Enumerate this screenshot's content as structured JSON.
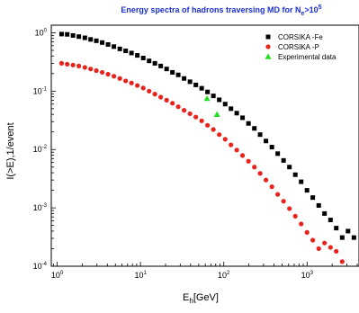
{
  "chart_data": {
    "type": "scatter",
    "title_main": "Energy spectra of hadrons traversing MD for N",
    "title_sub": "e",
    "title_op": ">10",
    "title_sup": "5",
    "xlabel_main": "E",
    "xlabel_sub": "h",
    "xlabel_unit": "[GeV]",
    "ylabel": "I(>E),1/event",
    "xscale": "log",
    "yscale": "log",
    "xlim": [
      0.85,
      4200
    ],
    "ylim": [
      0.0001,
      1.35
    ],
    "xticks": [
      {
        "value": 1,
        "base": "10",
        "exp": "0"
      },
      {
        "value": 10,
        "base": "10",
        "exp": "1"
      },
      {
        "value": 100,
        "base": "10",
        "exp": "2"
      },
      {
        "value": 1000,
        "base": "10",
        "exp": "3"
      }
    ],
    "yticks": [
      {
        "value": 1,
        "base": "10",
        "exp": "0"
      },
      {
        "value": 0.1,
        "base": "10",
        "exp": "-1"
      },
      {
        "value": 0.01,
        "base": "10",
        "exp": "-2"
      },
      {
        "value": 0.001,
        "base": "10",
        "exp": "-3"
      },
      {
        "value": 0.0001,
        "base": "10",
        "exp": "-4"
      }
    ],
    "legend_position": "top-right",
    "series": [
      {
        "name": "CORSIKA -Fe",
        "marker": "square",
        "color": "#000000",
        "x": [
          1.13,
          1.32,
          1.55,
          1.82,
          2.15,
          2.52,
          2.95,
          3.47,
          4.08,
          4.8,
          5.65,
          6.64,
          7.8,
          9.17,
          10.8,
          12.7,
          14.9,
          17.5,
          20.6,
          24.2,
          28.4,
          33.4,
          39.3,
          46.2,
          54.3,
          63.8,
          75.0,
          88.2,
          104,
          122,
          143,
          168,
          198,
          233,
          273,
          321,
          378,
          444,
          522,
          614,
          722,
          849,
          998,
          1170,
          1380,
          1620,
          1910,
          2240,
          2640,
          3100,
          3650
        ],
        "y": [
          0.95,
          0.94,
          0.9,
          0.86,
          0.82,
          0.77,
          0.73,
          0.68,
          0.63,
          0.58,
          0.53,
          0.49,
          0.45,
          0.41,
          0.37,
          0.33,
          0.3,
          0.27,
          0.24,
          0.21,
          0.19,
          0.165,
          0.145,
          0.128,
          0.112,
          0.097,
          0.083,
          0.071,
          0.06,
          0.05,
          0.042,
          0.035,
          0.028,
          0.023,
          0.018,
          0.014,
          0.011,
          0.0085,
          0.0065,
          0.005,
          0.0037,
          0.0028,
          0.002,
          0.0015,
          0.0011,
          0.0008,
          0.00062,
          0.00045,
          0.00031,
          0.0004,
          0.00031
        ]
      },
      {
        "name": "CORSIKA -P",
        "marker": "circle",
        "color": "#e8231c",
        "x": [
          1.13,
          1.32,
          1.55,
          1.82,
          2.15,
          2.52,
          2.95,
          3.47,
          4.08,
          4.8,
          5.65,
          6.64,
          7.8,
          9.17,
          10.8,
          12.7,
          14.9,
          17.5,
          20.6,
          24.2,
          28.4,
          33.4,
          39.3,
          46.2,
          54.3,
          63.8,
          75.0,
          88.2,
          104,
          122,
          143,
          168,
          198,
          233,
          273,
          321,
          378,
          444,
          522,
          614,
          722,
          849,
          998,
          1170,
          1380,
          1620,
          1910,
          2240,
          2640
        ],
        "y": [
          0.3,
          0.29,
          0.28,
          0.27,
          0.255,
          0.24,
          0.225,
          0.21,
          0.195,
          0.18,
          0.165,
          0.15,
          0.138,
          0.125,
          0.113,
          0.1,
          0.089,
          0.079,
          0.07,
          0.062,
          0.054,
          0.047,
          0.041,
          0.036,
          0.031,
          0.026,
          0.022,
          0.018,
          0.015,
          0.012,
          0.0098,
          0.0079,
          0.0063,
          0.005,
          0.0039,
          0.003,
          0.0023,
          0.0017,
          0.0013,
          0.00097,
          0.00072,
          0.00053,
          0.00038,
          0.00028,
          0.0002,
          0.00025,
          0.00021,
          0.00018,
          0.00012
        ]
      },
      {
        "name": "Experimental data",
        "marker": "triangle",
        "color": "#22dd22",
        "x": [
          63,
          83
        ],
        "y": [
          0.075,
          0.04
        ]
      }
    ]
  }
}
